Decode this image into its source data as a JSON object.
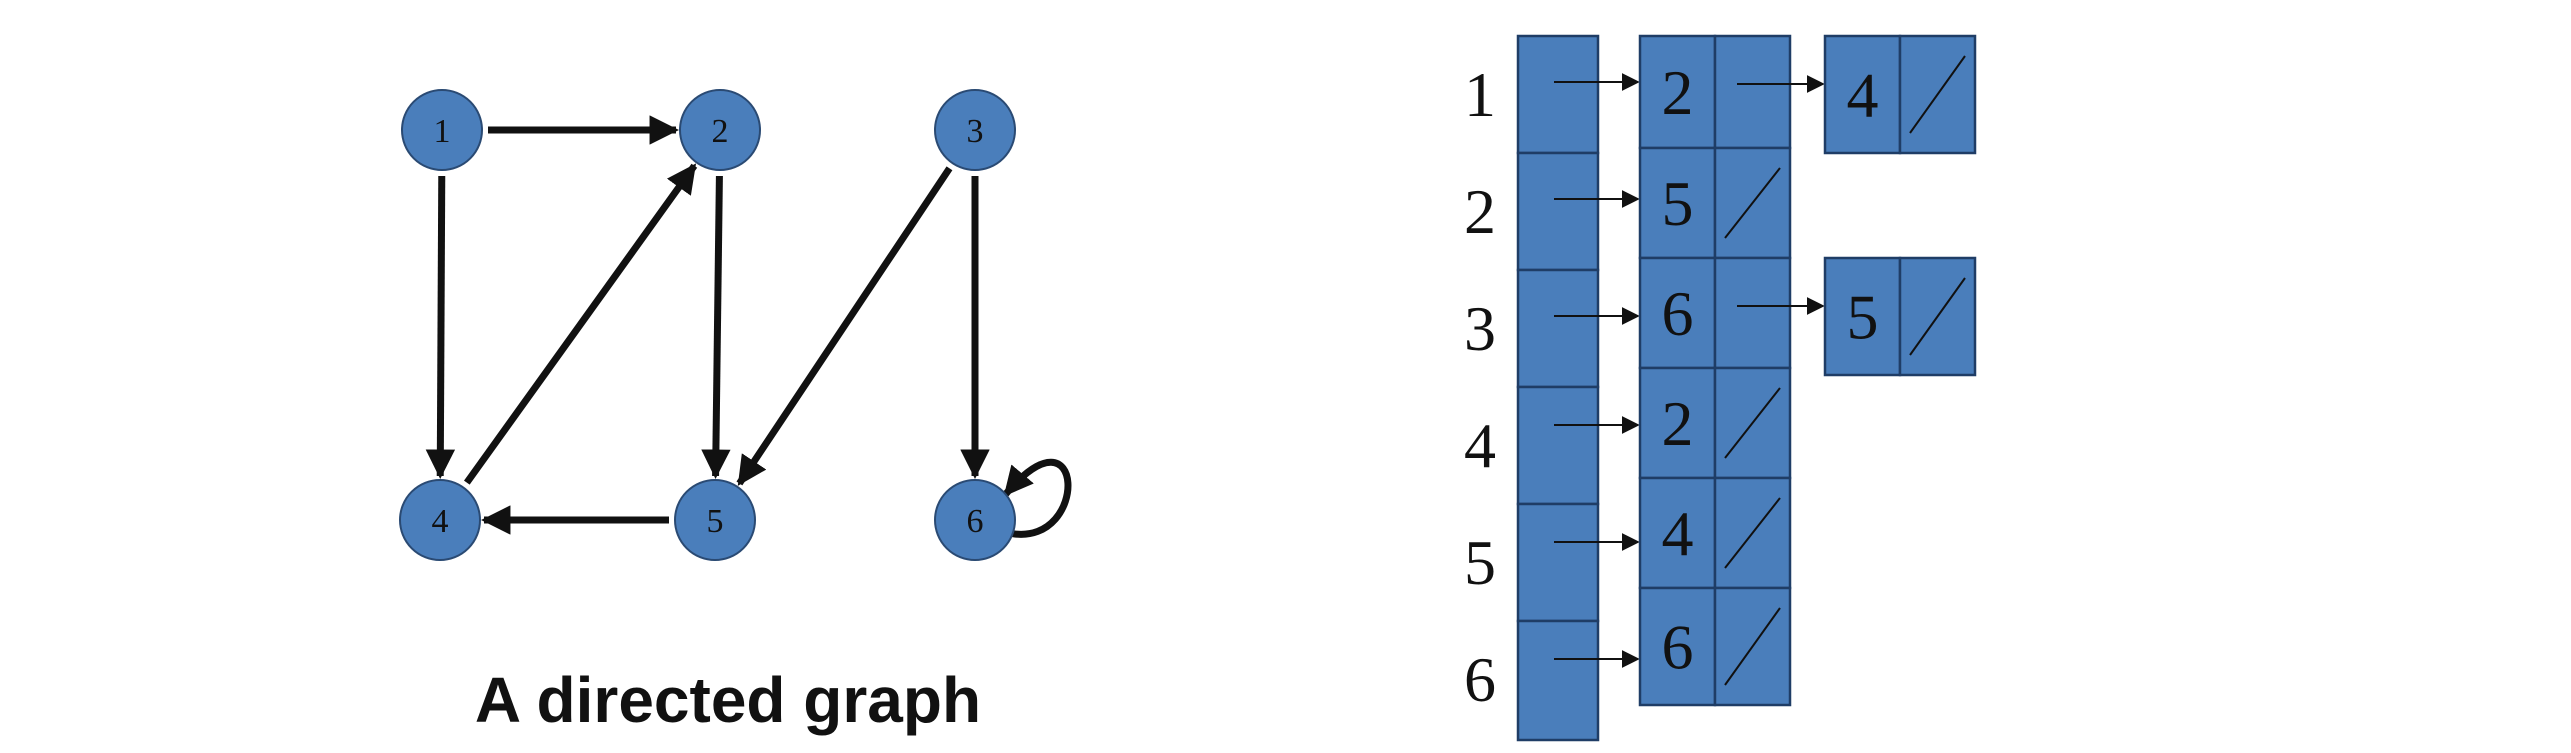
{
  "colors": {
    "node_fill": "#4a7ebb",
    "node_stroke": "#2a4a73",
    "cell_fill": "#4a7ebb",
    "cell_stroke": "#1f3d66",
    "ink": "#111111"
  },
  "graph": {
    "caption": "A directed graph",
    "nodes": [
      {
        "id": "1",
        "label": "1"
      },
      {
        "id": "2",
        "label": "2"
      },
      {
        "id": "3",
        "label": "3"
      },
      {
        "id": "4",
        "label": "4"
      },
      {
        "id": "5",
        "label": "5"
      },
      {
        "id": "6",
        "label": "6"
      }
    ],
    "edges": [
      {
        "from": "1",
        "to": "2"
      },
      {
        "from": "1",
        "to": "4"
      },
      {
        "from": "2",
        "to": "5"
      },
      {
        "from": "3",
        "to": "5"
      },
      {
        "from": "3",
        "to": "6"
      },
      {
        "from": "4",
        "to": "2"
      },
      {
        "from": "5",
        "to": "4"
      },
      {
        "from": "6",
        "to": "6"
      }
    ]
  },
  "adjacency_list": {
    "rows": [
      {
        "label": "1",
        "entries": [
          "2",
          "4"
        ]
      },
      {
        "label": "2",
        "entries": [
          "5"
        ]
      },
      {
        "label": "3",
        "entries": [
          "6",
          "5"
        ]
      },
      {
        "label": "4",
        "entries": [
          "2"
        ]
      },
      {
        "label": "5",
        "entries": [
          "4"
        ]
      },
      {
        "label": "6",
        "entries": [
          "6"
        ]
      }
    ]
  }
}
